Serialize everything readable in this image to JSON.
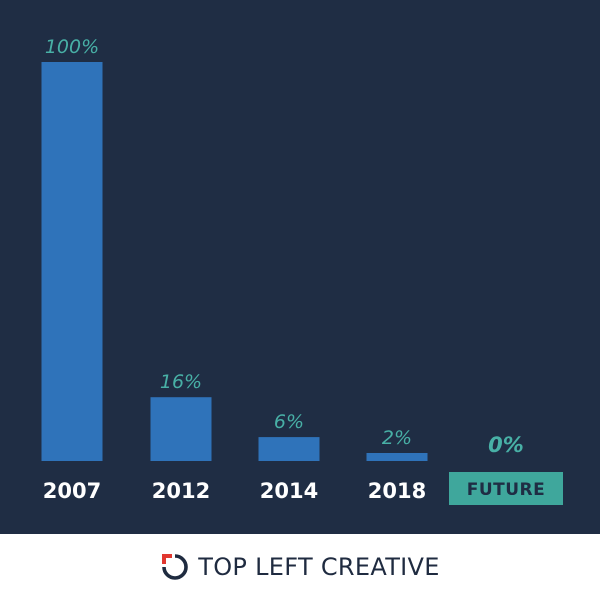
{
  "colors": {
    "background": "#1f2d44",
    "bar": "#2f73ba",
    "value_label": "#48b0a6",
    "category_label": "#ffffff",
    "highlight_box": "#3fa79c",
    "highlight_text": "#1f2d44",
    "brand_text": "#1f2b40",
    "logo_red": "#e1372f",
    "logo_navy": "#1f2b40"
  },
  "chart_data": {
    "type": "bar",
    "categories": [
      "2007",
      "2012",
      "2014",
      "2018",
      "FUTURE"
    ],
    "values": [
      100,
      16,
      6,
      2,
      0
    ],
    "value_labels": [
      "100%",
      "16%",
      "6%",
      "2%",
      "0%"
    ],
    "highlight_category": "FUTURE",
    "ylim": [
      0,
      100
    ],
    "grid": false,
    "legend": "none"
  },
  "footer": {
    "brand_name": "TOP LEFT CREATIVE",
    "logo_icon": "top-left-creative-logo-icon"
  }
}
